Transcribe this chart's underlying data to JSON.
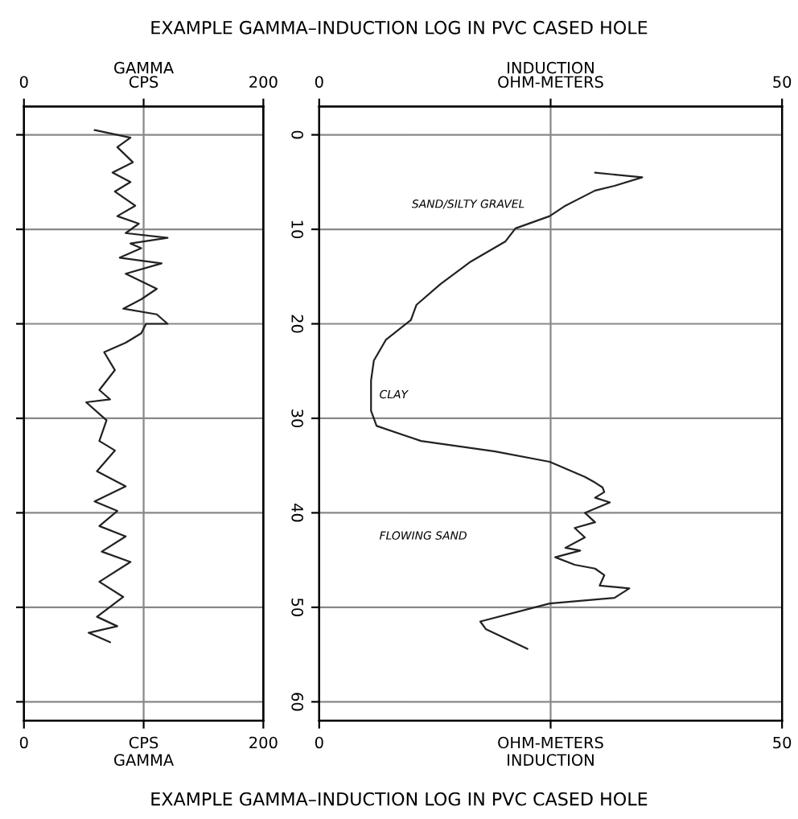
{
  "chart_data": [
    {
      "type": "line",
      "title": "EXAMPLE GAMMA–INDUCTION LOG IN PVC CASED HOLE",
      "annotations": [
        "EXAMPLE GAMMA–INDUCTION LOG IN PVC CASED HOLE"
      ],
      "xlabel": "GAMMA",
      "x2label": "GAMMA",
      "xlim": [
        0,
        200
      ],
      "xticks": [
        0,
        {
          "value": 100,
          "label": "CPS"
        },
        200
      ],
      "x2lim": [
        0,
        200
      ],
      "x2ticks": [
        0,
        {
          "value": 100,
          "label": "CPS"
        },
        200
      ],
      "ylim": [
        62,
        -3
      ],
      "yticks": [
        0,
        10,
        20,
        30,
        40,
        50,
        60
      ],
      "tick_labels": "x",
      "grid": true,
      "legend": false,
      "series": [
        {
          "color": "#222222",
          "x": [
            59,
            89,
            78,
            91,
            74,
            89,
            76,
            93,
            78,
            96,
            85,
            120,
            89,
            98,
            80,
            115,
            85,
            111,
            98,
            83,
            111,
            120,
            102,
            98,
            85,
            67,
            76,
            63,
            72,
            52,
            69,
            63,
            76,
            61,
            85,
            59,
            78,
            63,
            85,
            65,
            89,
            63,
            83,
            61,
            78,
            54,
            72
          ],
          "values": [
            -0.5,
            0.3,
            1.3,
            2.9,
            4,
            5,
            6,
            7.5,
            8.6,
            9.4,
            10.4,
            10.9,
            11.5,
            12,
            13,
            13.6,
            14.7,
            16.3,
            17.4,
            18.4,
            19,
            20,
            20,
            21,
            22,
            23,
            24.9,
            27,
            28,
            28.3,
            30.2,
            32.4,
            33.4,
            35.6,
            37.2,
            38.8,
            39.8,
            41.4,
            42.5,
            44.1,
            45.2,
            47.3,
            48.9,
            51,
            52,
            52.7,
            53.7
          ]
        }
      ]
    },
    {
      "type": "line",
      "xlabel": "INDUCTION",
      "x2label": "INDUCTION",
      "xlim": [
        0,
        50
      ],
      "xticks": [
        0,
        {
          "value": 25,
          "label": "OHM-METERS"
        },
        50
      ],
      "x2lim": [
        0,
        50
      ],
      "x2ticks": [
        0,
        {
          "value": 25,
          "label": "OHM-METERS"
        },
        50
      ],
      "ylim": [
        62,
        -3
      ],
      "yticks": [
        0,
        10,
        20,
        30,
        40,
        50,
        60
      ],
      "grid": true,
      "legend": false,
      "annotations": [
        "SAND/SILTY GRAVEL",
        "CLAY",
        "FLOWING SAND"
      ],
      "series": [
        {
          "color": "#222222",
          "x": [
            29.8,
            34.9,
            31.9,
            29.8,
            26.6,
            24.9,
            21.2,
            20.1,
            16.4,
            13.1,
            10.5,
            9.9,
            7.2,
            5.9,
            5.6,
            5.6,
            6.2,
            11.0,
            19.0,
            24.9,
            28.7,
            29.8,
            30.6,
            30.8,
            29.8,
            31.4,
            28.7,
            29.8,
            27.6,
            28.7,
            26.6,
            28.2,
            25.5,
            27.6,
            29.8,
            30.8,
            30.3,
            33.5,
            31.9,
            24.9,
            17.4,
            18.0,
            22.5
          ],
          "values": [
            4.0,
            4.5,
            5.4,
            5.9,
            7.5,
            8.6,
            9.9,
            11.3,
            13.4,
            15.8,
            18,
            19.6,
            21.7,
            23.9,
            26,
            29.2,
            30.8,
            32.4,
            33.5,
            34.6,
            36.2,
            36.8,
            37.3,
            37.8,
            38.4,
            38.9,
            40,
            41,
            41.6,
            42.6,
            43.7,
            44.0,
            44.7,
            45.5,
            45.9,
            46.6,
            47.7,
            48,
            49,
            49.6,
            51.5,
            52.3,
            54.4
          ]
        }
      ]
    }
  ]
}
